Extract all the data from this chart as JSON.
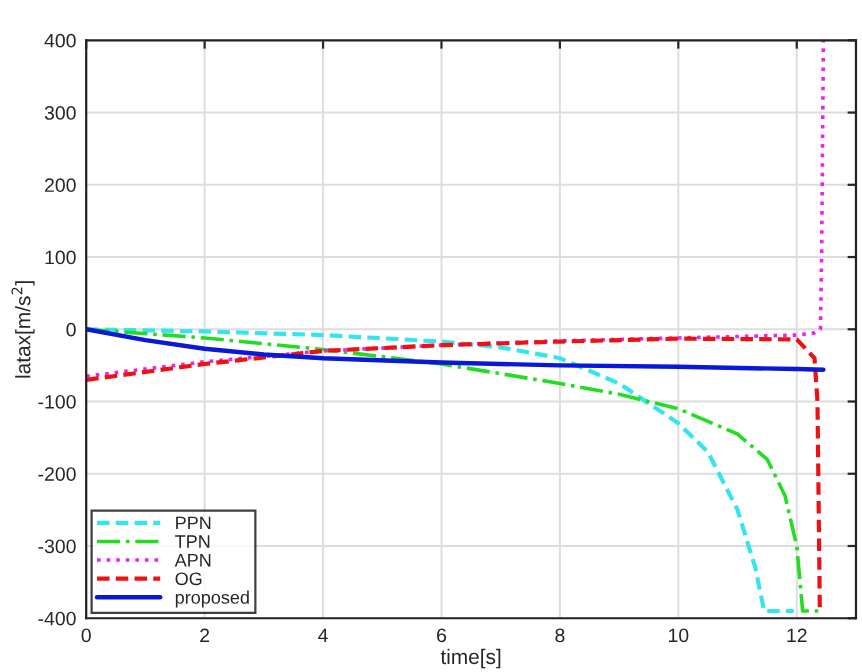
{
  "chart_data": {
    "type": "line",
    "xlabel": "time[s]",
    "ylabel": "latax[m/s$^{2}$]",
    "xlim": [
      0,
      13
    ],
    "xticks": [
      0,
      2,
      4,
      6,
      8,
      10,
      12
    ],
    "ylim": [
      -400,
      400
    ],
    "yticks": [
      -400,
      -300,
      -200,
      -100,
      0,
      100,
      200,
      300,
      400
    ],
    "grid": true,
    "legend": "bottom left",
    "series": [
      {
        "name": "PPN",
        "color": "#33e5f0",
        "line_style": "dashed",
        "x": [
          0,
          2,
          4,
          6,
          7,
          8,
          9,
          10,
          10.5,
          11,
          11.3,
          11.45,
          11.95
        ],
        "values": [
          0,
          -3,
          -8,
          -17,
          -25,
          -40,
          -75,
          -130,
          -170,
          -250,
          -330,
          -390,
          -390
        ]
      },
      {
        "name": "TPN",
        "color": "#22dd22",
        "line_style": "dashdot",
        "x": [
          0,
          2,
          4,
          6,
          8,
          9,
          10,
          11,
          11.5,
          11.8,
          12,
          12.1,
          12.45
        ],
        "values": [
          0,
          -12,
          -28,
          -48,
          -75,
          -90,
          -110,
          -145,
          -180,
          -230,
          -300,
          -390,
          -390
        ]
      },
      {
        "name": "APN",
        "color": "#ee22ee",
        "line_style": "dotted",
        "x": [
          0,
          2,
          4,
          6,
          8,
          10,
          12,
          12.3,
          12.4,
          12.42,
          12.45
        ],
        "values": [
          -65,
          -45,
          -30,
          -22,
          -16,
          -12,
          -8,
          -5,
          0,
          100,
          400
        ]
      },
      {
        "name": "OG",
        "color": "#ee1111",
        "line_style": "dashed",
        "x": [
          0,
          2,
          4,
          6,
          8,
          10,
          12,
          12.3,
          12.35,
          12.39
        ],
        "values": [
          -70,
          -48,
          -30,
          -22,
          -17,
          -13,
          -14,
          -40,
          -100,
          -390
        ]
      },
      {
        "name": "proposed",
        "color": "#0a18d8",
        "line_style": "solid",
        "x": [
          0,
          1,
          2,
          3,
          4,
          6,
          8,
          10,
          12,
          12.45
        ],
        "values": [
          0,
          -15,
          -27,
          -35,
          -40,
          -46,
          -50,
          -52,
          -55,
          -56
        ]
      }
    ]
  }
}
